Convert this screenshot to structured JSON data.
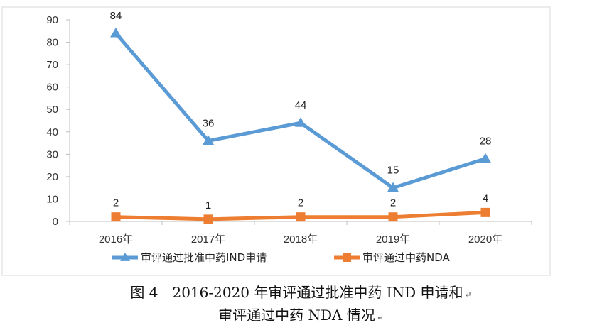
{
  "chart_data": {
    "type": "line",
    "categories": [
      "2016年",
      "2017年",
      "2018年",
      "2019年",
      "2020年"
    ],
    "series": [
      {
        "name": "审评通过批准中药IND申请",
        "values": [
          84,
          36,
          44,
          15,
          28
        ],
        "color": "#5B9BD5",
        "marker": "triangle"
      },
      {
        "name": "审评通过中药NDA",
        "values": [
          2,
          1,
          2,
          2,
          4
        ],
        "color": "#ED7D31",
        "marker": "square"
      }
    ],
    "ylim": [
      0,
      90
    ],
    "yticks": [
      0,
      10,
      20,
      30,
      40,
      50,
      60,
      70,
      80,
      90
    ],
    "grid": false,
    "legend_position": "bottom"
  },
  "caption": {
    "line1": "图 4　2016-2020 年审评通过批准中药 IND 申请和",
    "line2": "审评通过中药 NDA 情况",
    "para_mark": "↵"
  }
}
